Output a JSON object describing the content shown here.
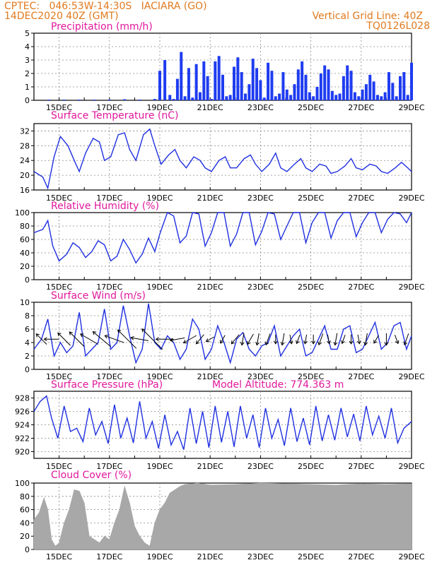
{
  "header": {
    "line1_left": "CPTEC:   046:53W-14:30S   IACIARA (GO)",
    "line2_left": "14DEC2020 40Z (GMT)",
    "line1_right": "Vertical Grid Line: 40Z",
    "line2_right": "TQ0126L028",
    "model_altitude": "Model Altitude: 774.363 m"
  },
  "colors": {
    "header": "#e07a1f",
    "title": "#e0189c",
    "line": "#2030e0",
    "bar": "#1f3cf0",
    "cloud": "#a8a8a8",
    "arrow": "#000000"
  },
  "x_ticks": [
    "15DEC",
    "17DEC",
    "19DEC",
    "21DEC",
    "23DEC",
    "25DEC",
    "27DEC",
    "29DEC"
  ],
  "chart_data": [
    {
      "type": "bar",
      "title": "Precipitation (mm/h)",
      "x_range": [
        "14DEC2020 00Z",
        "29DEC2020 00Z"
      ],
      "ylim": [
        0,
        5
      ],
      "yticks": [
        "0",
        "1",
        "2",
        "3",
        "4",
        "5"
      ],
      "x_days": [
        0.6,
        1.2,
        1.8,
        2.4,
        3.0,
        3.6,
        4.2,
        4.8,
        5.0,
        5.2,
        5.4,
        5.55,
        5.7,
        5.85,
        6.0,
        6.15,
        6.3,
        6.45,
        6.6,
        6.75,
        6.9,
        7.05,
        7.2,
        7.35,
        7.5,
        7.65,
        7.8,
        7.95,
        8.1,
        8.25,
        8.4,
        8.55,
        8.7,
        8.85,
        9.0,
        9.15,
        9.3,
        9.45,
        9.6,
        9.75,
        9.9,
        10.05,
        10.2,
        10.35,
        10.5,
        10.65,
        10.8,
        10.95,
        11.1,
        11.25,
        11.4,
        11.55,
        11.7,
        11.85,
        12.0,
        12.15,
        12.3,
        12.45,
        12.6,
        12.75,
        12.9,
        13.05,
        13.2,
        13.35,
        13.5,
        13.65,
        13.8,
        13.95,
        14.1,
        14.25,
        14.4,
        14.55,
        14.7,
        14.85,
        15.0
      ],
      "values": [
        0.05,
        0.05,
        0.05,
        0.05,
        0.05,
        0.08,
        0.05,
        0.1,
        2.2,
        3.0,
        0.4,
        0.1,
        1.6,
        3.6,
        0.3,
        2.4,
        0.2,
        2.7,
        0.6,
        2.9,
        1.8,
        0.1,
        2.9,
        3.3,
        1.9,
        0.3,
        0.4,
        2.5,
        3.2,
        2.1,
        0.5,
        1.2,
        3.1,
        2.4,
        1.5,
        0.2,
        2.8,
        2.2,
        0.3,
        0.5,
        2.1,
        0.8,
        0.4,
        1.2,
        2.3,
        2.9,
        1.9,
        0.6,
        0.3,
        1.0,
        2.0,
        2.6,
        2.3,
        0.7,
        0.4,
        0.5,
        1.8,
        2.6,
        2.2,
        0.6,
        0.3,
        0.8,
        1.2,
        1.9,
        1.4,
        0.4,
        0.3,
        0.6,
        2.1,
        1.3,
        0.3,
        1.8,
        2.1,
        0.4,
        2.8
      ]
    },
    {
      "type": "line",
      "title": "Surface Temperature (nC)",
      "x_range": [
        "14DEC2020 00Z",
        "29DEC2020 00Z"
      ],
      "ylim": [
        16,
        34
      ],
      "yticks": [
        "16",
        "20",
        "24",
        "28",
        "32"
      ],
      "x_days": [
        0,
        0.35,
        0.55,
        0.8,
        1.05,
        1.35,
        1.6,
        1.8,
        2.05,
        2.35,
        2.6,
        2.8,
        3.05,
        3.35,
        3.6,
        3.8,
        4.05,
        4.35,
        4.6,
        4.8,
        5.05,
        5.35,
        5.6,
        5.8,
        6.05,
        6.35,
        6.6,
        6.8,
        7.05,
        7.35,
        7.6,
        7.8,
        8.05,
        8.35,
        8.6,
        8.8,
        9.05,
        9.35,
        9.6,
        9.8,
        10.05,
        10.35,
        10.6,
        10.8,
        11.05,
        11.35,
        11.6,
        11.8,
        12.05,
        12.35,
        12.6,
        12.8,
        13.05,
        13.35,
        13.6,
        13.8,
        14.05,
        14.35,
        14.6,
        14.85,
        15.0
      ],
      "values": [
        21,
        19.5,
        16.5,
        25,
        30.5,
        28,
        24,
        21,
        26,
        30,
        29,
        24,
        25,
        31,
        31.5,
        27,
        24,
        31,
        32.5,
        28,
        23,
        25.5,
        27,
        24,
        22,
        25,
        24,
        22,
        21,
        24,
        25,
        22,
        22,
        24.5,
        25.5,
        23,
        21,
        23,
        26,
        22,
        21,
        23,
        24.5,
        22,
        21,
        23,
        22.5,
        20.5,
        21,
        22.5,
        24.5,
        22,
        21.5,
        23,
        22.5,
        21,
        20.5,
        22,
        23.5,
        22,
        21
      ]
    },
    {
      "type": "line",
      "title": "Relative Humidity (%)",
      "x_range": [
        "14DEC2020 00Z",
        "29DEC2020 00Z"
      ],
      "ylim": [
        0,
        100
      ],
      "yticks": [
        "0",
        "20",
        "40",
        "60",
        "80",
        "100"
      ],
      "x_days": [
        0,
        0.35,
        0.55,
        0.75,
        1.0,
        1.3,
        1.55,
        1.8,
        2.05,
        2.3,
        2.55,
        2.8,
        3.05,
        3.3,
        3.55,
        3.8,
        4.05,
        4.3,
        4.55,
        4.8,
        5.0,
        5.3,
        5.55,
        5.8,
        6.05,
        6.3,
        6.55,
        6.8,
        7.05,
        7.3,
        7.55,
        7.8,
        8.05,
        8.3,
        8.55,
        8.8,
        9.05,
        9.3,
        9.55,
        9.8,
        10.05,
        10.3,
        10.55,
        10.8,
        11.05,
        11.3,
        11.55,
        11.8,
        12.05,
        12.3,
        12.55,
        12.8,
        13.05,
        13.3,
        13.55,
        13.8,
        14.05,
        14.3,
        14.55,
        14.8,
        15.0
      ],
      "values": [
        70,
        75,
        88,
        50,
        28,
        38,
        55,
        48,
        33,
        42,
        58,
        52,
        28,
        35,
        60,
        45,
        25,
        38,
        62,
        42,
        68,
        100,
        95,
        55,
        65,
        100,
        98,
        50,
        70,
        100,
        100,
        50,
        68,
        100,
        100,
        52,
        72,
        100,
        98,
        60,
        80,
        100,
        100,
        55,
        85,
        100,
        100,
        62,
        88,
        100,
        100,
        64,
        85,
        100,
        100,
        70,
        90,
        100,
        98,
        85,
        100
      ]
    },
    {
      "type": "line",
      "title": "Surface Wind (m/s)",
      "x_range": [
        "14DEC2020 00Z",
        "29DEC2020 00Z"
      ],
      "ylim": [
        0,
        10
      ],
      "yticks": [
        "0",
        "2",
        "4",
        "6",
        "8",
        "10"
      ],
      "x_days": [
        0,
        0.3,
        0.55,
        0.8,
        1.05,
        1.3,
        1.55,
        1.8,
        2.05,
        2.3,
        2.55,
        2.8,
        3.05,
        3.3,
        3.55,
        3.8,
        4.05,
        4.3,
        4.55,
        4.8,
        5.05,
        5.3,
        5.55,
        5.8,
        6.05,
        6.3,
        6.55,
        6.8,
        7.05,
        7.3,
        7.55,
        7.8,
        8.05,
        8.3,
        8.55,
        8.8,
        9.05,
        9.3,
        9.55,
        9.8,
        10.05,
        10.3,
        10.55,
        10.8,
        11.05,
        11.3,
        11.55,
        11.8,
        12.05,
        12.3,
        12.55,
        12.8,
        13.05,
        13.3,
        13.55,
        13.8,
        14.05,
        14.3,
        14.55,
        14.8,
        15.0
      ],
      "values": [
        3,
        4.5,
        7.5,
        2,
        4,
        2.5,
        3.5,
        8.5,
        2,
        3,
        4,
        9,
        3,
        4,
        9.5,
        5,
        1,
        3,
        9.8,
        4,
        3,
        5,
        4,
        1.5,
        3,
        7.5,
        6,
        1.5,
        3,
        6.5,
        4,
        1,
        4.5,
        5.5,
        3,
        2,
        3.5,
        4,
        6.5,
        2,
        3.5,
        5,
        6,
        2,
        2.5,
        4.5,
        6.5,
        3,
        3,
        6,
        6.5,
        2.5,
        3,
        5,
        7,
        3,
        4,
        6.5,
        7,
        3,
        5
      ]
    },
    {
      "type": "line",
      "title": "Surface Pressure (hPa)",
      "x_range": [
        "14DEC2020 00Z",
        "29DEC2020 00Z"
      ],
      "ylim": [
        919,
        929
      ],
      "yticks": [
        "920",
        "922",
        "924",
        "926",
        "928"
      ],
      "x_days": [
        0,
        0.25,
        0.5,
        0.7,
        0.95,
        1.2,
        1.45,
        1.7,
        1.95,
        2.2,
        2.45,
        2.7,
        2.95,
        3.2,
        3.45,
        3.7,
        3.95,
        4.2,
        4.45,
        4.7,
        4.95,
        5.2,
        5.45,
        5.7,
        5.95,
        6.2,
        6.45,
        6.7,
        6.95,
        7.2,
        7.45,
        7.7,
        7.95,
        8.2,
        8.45,
        8.7,
        8.95,
        9.2,
        9.45,
        9.7,
        9.95,
        10.2,
        10.45,
        10.7,
        10.95,
        11.2,
        11.45,
        11.7,
        11.95,
        12.2,
        12.45,
        12.7,
        12.95,
        13.2,
        13.45,
        13.7,
        13.95,
        14.2,
        14.45,
        14.7,
        15.0
      ],
      "values": [
        926,
        927.5,
        928.3,
        925,
        922,
        926.8,
        923,
        923.5,
        921.5,
        926.5,
        922.5,
        924.5,
        921.2,
        927,
        922,
        925,
        921.3,
        927.5,
        922,
        924.5,
        920.5,
        925.5,
        921,
        923,
        920.3,
        926.5,
        921.2,
        926,
        920.6,
        926.8,
        921.4,
        926,
        920.7,
        926.8,
        922,
        925.5,
        920.6,
        926.5,
        922,
        924.8,
        920.9,
        926.5,
        921.5,
        925,
        921,
        926.8,
        921.6,
        925.5,
        921.7,
        926.5,
        922.2,
        925.6,
        921.6,
        926.8,
        922.5,
        925.3,
        922,
        926.5,
        921.3,
        923.5,
        924.5
      ]
    },
    {
      "type": "area",
      "title": "Cloud Cover (%)",
      "x_range": [
        "14DEC2020 00Z",
        "29DEC2020 00Z"
      ],
      "ylim": [
        0,
        100
      ],
      "yticks": [
        "0",
        "20",
        "40",
        "60",
        "80",
        "100"
      ],
      "x_days": [
        0,
        0.2,
        0.4,
        0.55,
        0.7,
        0.85,
        1.0,
        1.2,
        1.4,
        1.6,
        1.8,
        2.0,
        2.2,
        2.4,
        2.6,
        2.8,
        3.0,
        3.2,
        3.4,
        3.6,
        3.8,
        4.0,
        4.2,
        4.4,
        4.6,
        4.8,
        5.0,
        5.2,
        5.4,
        5.6,
        5.8,
        6.0,
        6.5,
        7.0,
        8.0,
        9.0,
        10.0,
        11.0,
        12.0,
        13.0,
        14.0,
        15.0
      ],
      "values": [
        45,
        55,
        78,
        60,
        15,
        5,
        10,
        40,
        60,
        90,
        88,
        70,
        20,
        15,
        10,
        20,
        15,
        40,
        60,
        95,
        70,
        35,
        20,
        10,
        5,
        40,
        60,
        70,
        85,
        90,
        95,
        98,
        100,
        97,
        98,
        100,
        99,
        98,
        97,
        99,
        98,
        99
      ]
    }
  ],
  "wind_arrows": {
    "x_days": [
      0.3,
      0.7,
      1.2,
      1.7,
      2.2,
      2.7,
      3.2,
      3.7,
      4.2,
      4.7,
      5.2,
      5.7,
      6.2,
      6.6,
      7.0,
      7.5,
      8.0,
      8.3,
      8.6,
      8.9,
      9.3,
      9.6,
      9.9,
      10.2,
      10.5,
      10.8,
      11.1,
      11.4,
      11.7,
      12.0,
      12.3,
      12.6,
      12.9,
      13.2,
      13.6,
      14.0,
      14.4,
      14.8
    ],
    "speed": [
      4,
      4,
      5,
      6,
      6,
      7,
      6,
      8,
      5,
      9,
      5,
      4,
      4,
      3,
      2,
      2,
      3,
      3,
      3,
      3,
      3,
      2,
      3,
      2,
      2,
      2,
      2,
      3,
      2,
      3,
      2,
      2,
      2,
      3,
      2,
      3,
      2,
      3
    ],
    "dir_deg": [
      225,
      270,
      225,
      225,
      240,
      230,
      250,
      225,
      260,
      225,
      270,
      280,
      300,
      320,
      300,
      330,
      320,
      350,
      330,
      350,
      340,
      0,
      350,
      10,
      340,
      350,
      0,
      340,
      10,
      350,
      340,
      0,
      10,
      350,
      330,
      0,
      20,
      340
    ]
  }
}
